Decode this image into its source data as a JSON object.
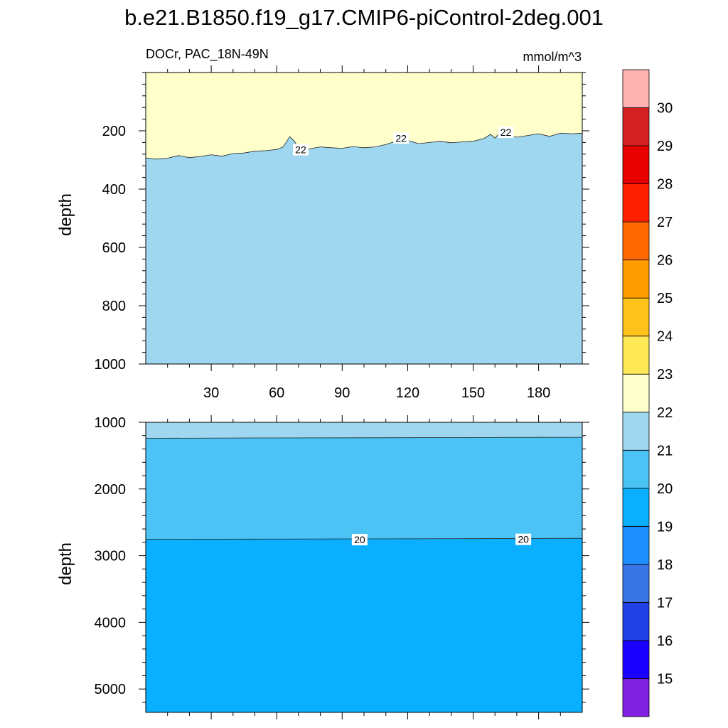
{
  "chart_data": {
    "type": "contour",
    "title": "b.e21.B1850.f19_g17.CMIP6-piControl-2deg.001",
    "left_label": "DOCr, PAC_18N-49N",
    "right_label": "mmol/m^3",
    "x": {
      "min": 0,
      "max": 200,
      "ticks": [
        30,
        60,
        90,
        120,
        150,
        180
      ],
      "tick_labels": [
        "30",
        "60",
        "90",
        "120",
        "150",
        "180"
      ]
    },
    "colorbar": {
      "levels": [
        15,
        16,
        17,
        18,
        19,
        20,
        21,
        22,
        23,
        24,
        25,
        26,
        27,
        28,
        29,
        30
      ],
      "labels": [
        "15",
        "16",
        "17",
        "18",
        "19",
        "20",
        "21",
        "22",
        "23",
        "24",
        "25",
        "26",
        "27",
        "28",
        "29",
        "30"
      ],
      "colors": [
        "#8020e0",
        "#1a00ff",
        "#2040e6",
        "#3a75e6",
        "#1e90ff",
        "#0ab0ff",
        "#4bc3f5",
        "#9fd6f0",
        "#ffffcc",
        "#ffe855",
        "#ffc21a",
        "#ff9c00",
        "#ff6a00",
        "#ff2000",
        "#e60000",
        "#d42020",
        "#ffb2b2"
      ]
    },
    "panels": [
      {
        "name": "upper",
        "ylabel": "depth",
        "ylim": [
          0,
          1000
        ],
        "yticks": [
          200,
          400,
          600,
          800,
          1000
        ],
        "ytick_labels": [
          "200",
          "400",
          "600",
          "800",
          "1000"
        ],
        "show_x_tick_labels": true,
        "background_fill": "#9fd6f0",
        "contours": [
          {
            "level": 22,
            "fill_above": "#ffffcc",
            "depth_profile": [
              [
                0,
                293
              ],
              [
                5,
                297
              ],
              [
                10,
                294
              ],
              [
                15,
                285
              ],
              [
                20,
                292
              ],
              [
                25,
                288
              ],
              [
                30,
                282
              ],
              [
                35,
                287
              ],
              [
                40,
                278
              ],
              [
                45,
                276
              ],
              [
                50,
                270
              ],
              [
                55,
                268
              ],
              [
                60,
                264
              ],
              [
                63,
                255
              ],
              [
                66,
                220
              ],
              [
                68,
                235
              ],
              [
                70,
                258
              ],
              [
                75,
                262
              ],
              [
                80,
                255
              ],
              [
                85,
                258
              ],
              [
                90,
                260
              ],
              [
                95,
                254
              ],
              [
                100,
                258
              ],
              [
                105,
                255
              ],
              [
                110,
                247
              ],
              [
                115,
                235
              ],
              [
                118,
                228
              ],
              [
                120,
                233
              ],
              [
                125,
                244
              ],
              [
                130,
                240
              ],
              [
                135,
                236
              ],
              [
                140,
                241
              ],
              [
                145,
                238
              ],
              [
                150,
                236
              ],
              [
                155,
                226
              ],
              [
                158,
                212
              ],
              [
                160,
                225
              ],
              [
                163,
                199
              ],
              [
                166,
                217
              ],
              [
                170,
                222
              ],
              [
                175,
                216
              ],
              [
                180,
                210
              ],
              [
                185,
                219
              ],
              [
                190,
                208
              ],
              [
                195,
                210
              ],
              [
                200,
                208
              ]
            ],
            "labels": [
              {
                "x": 71,
                "depth": 265,
                "text": "22"
              },
              {
                "x": 117,
                "depth": 225,
                "text": "22"
              },
              {
                "x": 165,
                "depth": 205,
                "text": "22"
              }
            ]
          }
        ]
      },
      {
        "name": "lower",
        "ylabel": "depth",
        "ylim": [
          1000,
          5350
        ],
        "yticks": [
          1000,
          2000,
          3000,
          4000,
          5000
        ],
        "ytick_labels": [
          "1000",
          "2000",
          "3000",
          "4000",
          "5000"
        ],
        "show_x_tick_labels": false,
        "background_fill": "#0ab0ff",
        "contours": [
          {
            "level": 21,
            "fill_above": "#9fd6f0",
            "depth_profile": [
              [
                0,
                1240
              ],
              [
                50,
                1235
              ],
              [
                100,
                1232
              ],
              [
                150,
                1228
              ],
              [
                200,
                1225
              ]
            ],
            "labels": []
          },
          {
            "level": 20,
            "fill_above": "#4bc3f5",
            "depth_profile": [
              [
                0,
                2755
              ],
              [
                50,
                2752
              ],
              [
                100,
                2748
              ],
              [
                150,
                2745
              ],
              [
                200,
                2740
              ]
            ],
            "labels": [
              {
                "x": 98,
                "depth": 2760,
                "text": "20"
              },
              {
                "x": 173,
                "depth": 2755,
                "text": "20"
              }
            ]
          }
        ]
      }
    ]
  }
}
